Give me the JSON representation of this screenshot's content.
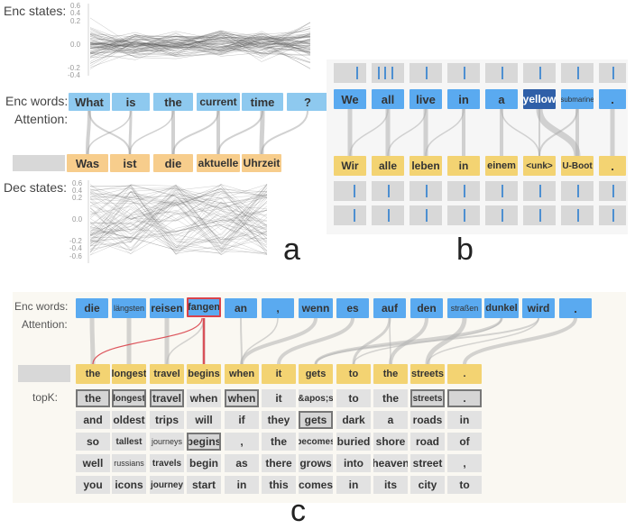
{
  "panel_a": {
    "enc_states_label": "Enc states:",
    "enc_words_label": "Enc words:",
    "attention_label": "Attention:",
    "dec_states_label": "Dec states:",
    "enc_ticks": [
      "0.6",
      "0.4",
      "0.2",
      "0.0",
      "-0.2",
      "-0.4"
    ],
    "dec_ticks": [
      "0.6",
      "0.4",
      "0.2",
      "0.0",
      "-0.2",
      "-0.4",
      "-0.6"
    ],
    "enc_words": [
      "What",
      "is",
      "the",
      "current",
      "time",
      "?"
    ],
    "dec_words": [
      "Was",
      "ist",
      "die",
      "aktuelle",
      "Uhrzeit"
    ],
    "letter": "a"
  },
  "panel_b": {
    "enc_words": [
      "We",
      "all",
      "live",
      "in",
      "a",
      "yellow",
      "submarine",
      "."
    ],
    "dec_words": [
      "Wir",
      "alle",
      "leben",
      "in",
      "einem",
      "<unk>",
      "U-Boot",
      "."
    ],
    "letter": "b"
  },
  "panel_c": {
    "enc_words_label": "Enc words:",
    "attention_label": "Attention:",
    "topk_label": "topK:",
    "enc_words": [
      "die",
      "längsten",
      "reisen",
      "fangen",
      "an",
      ",",
      "wenn",
      "es",
      "auf",
      "den",
      "straßen",
      "dunkel",
      "wird",
      "."
    ],
    "dec_words": [
      "the",
      "longest",
      "travel",
      "begins",
      "when",
      "it",
      "gets",
      "to",
      "the",
      "streets",
      "."
    ],
    "topk_rows": [
      [
        "the",
        "longest",
        "travel",
        "when",
        "when",
        "it",
        "&apos;s",
        "to",
        "the",
        "streets",
        "."
      ],
      [
        "and",
        "oldest",
        "trips",
        "will",
        "if",
        "they",
        "gets",
        "dark",
        "a",
        "roads",
        "in"
      ],
      [
        "so",
        "tallest",
        "journeys",
        "begins",
        ",",
        "the",
        "becomes",
        "buried",
        "shore",
        "road",
        "of"
      ],
      [
        "well",
        "russians",
        "travels",
        "begin",
        "as",
        "there",
        "grows",
        "into",
        "heaven",
        "street",
        ","
      ],
      [
        "you",
        "icons",
        "journey",
        "start",
        "in",
        "this",
        "comes",
        "in",
        "its",
        "city",
        "to"
      ]
    ],
    "letter": "c"
  },
  "colors": {
    "encoder": "#8ec9ef",
    "encoder_strong": "#5aaaf0",
    "decoder": "#f7cd8c",
    "decoder_c": "#f3d372",
    "highlight": "#d9434b"
  }
}
